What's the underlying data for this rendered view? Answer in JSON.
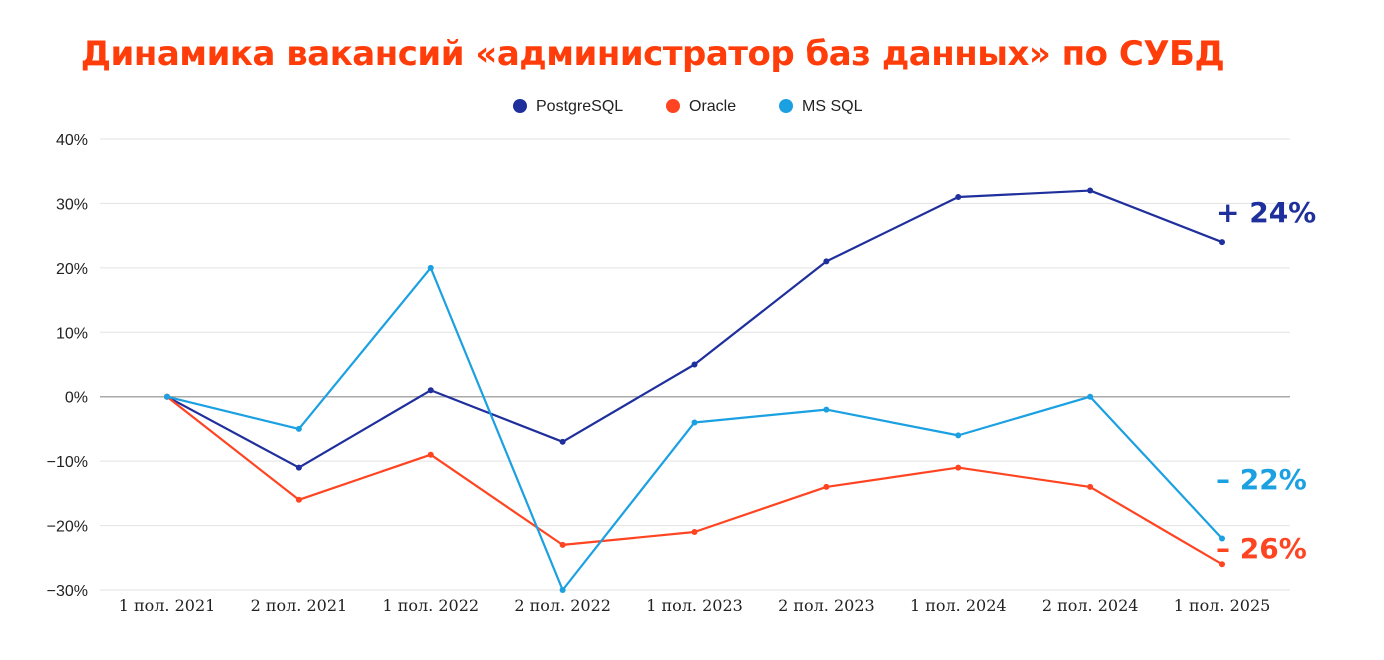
{
  "chart_data": {
    "type": "line",
    "title": "Динамика вакансий «администратор баз данных» по СУБД",
    "xlabel": "",
    "ylabel": "",
    "categories": [
      "1 пол. 2021",
      "2 пол. 2021",
      "1 пол. 2022",
      "2 пол. 2022",
      "1 пол. 2023",
      "2 пол. 2023",
      "1 пол. 2024",
      "2 пол. 2024",
      "1 пол. 2025"
    ],
    "ylim": [
      -30,
      40
    ],
    "yticks": [
      40,
      30,
      20,
      10,
      0,
      -10,
      -20,
      -30
    ],
    "ytick_labels": [
      "40%",
      "30%",
      "20%",
      "10%",
      "0%",
      "−10%",
      "−20%",
      "−30%"
    ],
    "grid": true,
    "legend_position": "top-center",
    "series": [
      {
        "name": "PostgreSQL",
        "color": "#1f2f9c",
        "values": [
          0,
          -11,
          1,
          -7,
          5,
          21,
          31,
          32,
          24
        ],
        "end_label": "+ 24%"
      },
      {
        "name": "Oracle",
        "color": "#ff4422",
        "values": [
          0,
          -16,
          -9,
          -23,
          -21,
          -14,
          -11,
          -14,
          -26
        ],
        "end_label": "– 26%"
      },
      {
        "name": "MS SQL",
        "color": "#1ba0e2",
        "values": [
          0,
          -5,
          20,
          -30,
          -4,
          -2,
          -6,
          0,
          -22
        ],
        "end_label": "– 22%"
      }
    ]
  }
}
